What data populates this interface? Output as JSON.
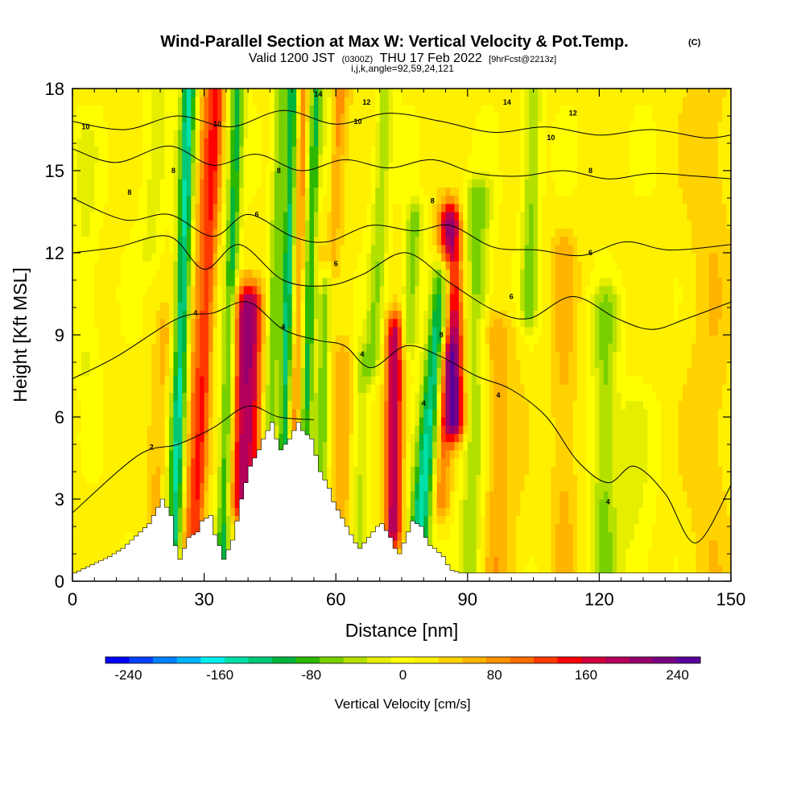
{
  "figure": {
    "title_main": "Wind-Parallel Section at Max W: Vertical Velocity & Pot.Temp.",
    "title_mark": "(C)",
    "subtitle_pre": "Valid 1200 JST",
    "subtitle_utc": "(0300Z)",
    "subtitle_mid": "THU 17 Feb 2022",
    "subtitle_fcst": "[9hrFcst@2213z]",
    "index_line": "i,j,k,angle=92,59,24,121"
  },
  "colors": {
    "background": "#ffffff",
    "terrain": "#ffffff",
    "contour": "#000000",
    "palette": [
      "#0000ff",
      "#0040ff",
      "#0080ff",
      "#00b4ff",
      "#00f0f0",
      "#00e0a8",
      "#00c878",
      "#00b43c",
      "#2cb800",
      "#78d000",
      "#b4e000",
      "#e6ee00",
      "#ffff00",
      "#fff000",
      "#ffd200",
      "#ffb400",
      "#ff9000",
      "#ff6c00",
      "#ff3800",
      "#ff0000",
      "#d2003c",
      "#b4005a",
      "#96006e",
      "#780082",
      "#5a009b"
    ]
  },
  "chart_data": {
    "type": "heatmap",
    "xlabel": "Distance [nm]",
    "ylabel": "Height [Kft MSL]",
    "xlim": [
      0,
      150
    ],
    "ylim": [
      0,
      18
    ],
    "x_ticks": [
      0,
      30,
      60,
      90,
      120,
      150
    ],
    "y_ticks": [
      0,
      3,
      6,
      9,
      12,
      15,
      18
    ],
    "x_tick_labels": [
      "0",
      "30",
      "60",
      "90",
      "120",
      "150"
    ],
    "y_tick_labels": [
      "0",
      "3",
      "6",
      "9",
      "12",
      "15",
      "18"
    ],
    "colorbar": {
      "label": "Vertical Velocity [cm/s]",
      "range": [
        -260,
        260
      ],
      "step": 20,
      "tick_values": [
        -240,
        -160,
        -80,
        0,
        80,
        160,
        240
      ],
      "tick_labels": [
        "-240",
        "-160",
        "-80",
        "0",
        "80",
        "160",
        "240"
      ]
    },
    "terrain": {
      "x_nm": [
        0,
        4,
        8,
        11,
        13,
        15,
        17,
        19,
        20,
        22,
        23,
        24,
        26,
        28,
        29,
        31,
        32,
        33,
        34,
        36,
        37,
        38,
        40,
        42,
        43,
        45,
        46,
        47,
        49,
        51,
        52,
        54,
        55,
        56,
        58,
        59,
        60,
        61,
        62,
        63,
        64,
        65,
        66,
        68,
        69,
        70,
        72,
        73,
        74,
        76,
        77,
        79,
        80,
        81,
        82,
        84,
        85,
        86,
        88,
        90,
        92,
        94,
        96,
        100,
        150
      ],
      "height_kft": [
        0.3,
        0.6,
        0.9,
        1.2,
        1.5,
        1.8,
        2.1,
        2.7,
        3.0,
        2.4,
        1.3,
        0.8,
        1.6,
        1.8,
        2.2,
        2.4,
        1.7,
        1.3,
        0.8,
        1.5,
        2.2,
        3.0,
        4.2,
        4.8,
        5.2,
        5.8,
        5.2,
        4.8,
        5.2,
        5.8,
        5.5,
        5.2,
        4.6,
        4.0,
        3.4,
        2.9,
        2.6,
        2.3,
        2.0,
        1.7,
        1.4,
        1.2,
        1.4,
        1.8,
        2.0,
        2.1,
        1.6,
        1.2,
        1.0,
        1.8,
        2.2,
        2.0,
        1.6,
        1.3,
        1.2,
        0.9,
        0.6,
        0.4,
        0.3,
        0.3,
        0.3,
        0.3,
        0.3,
        0.3,
        0.3
      ]
    },
    "w_bands": [
      {
        "x0_nm": 23,
        "tilt_nm_per_kft": 0.2,
        "width_nm": 1.8,
        "amp_cms": -150,
        "z0_kft": 0.5,
        "z1_kft": 18
      },
      {
        "x0_nm": 26,
        "tilt_nm_per_kft": 0.3,
        "width_nm": 2.2,
        "amp_cms": 80,
        "z0_kft": 0.5,
        "z1_kft": 18
      },
      {
        "x0_nm": 28,
        "tilt_nm_per_kft": 0.3,
        "width_nm": 1.5,
        "amp_cms": 70,
        "z0_kft": 0.5,
        "z1_kft": 18
      },
      {
        "x0_nm": 34,
        "tilt_nm_per_kft": 0.2,
        "width_nm": 1.6,
        "amp_cms": -110,
        "z0_kft": 0.5,
        "z1_kft": 18
      },
      {
        "x0_nm": 38,
        "tilt_nm_per_kft": 0.1,
        "width_nm": 2.5,
        "amp_cms": 150,
        "z0_kft": 3,
        "z1_kft": 10
      },
      {
        "x0_nm": 41,
        "tilt_nm_per_kft": 0.05,
        "width_nm": 2.0,
        "amp_cms": 100,
        "z0_kft": 3,
        "z1_kft": 10
      },
      {
        "x0_nm": 44,
        "tilt_nm_per_kft": 0.2,
        "width_nm": 1.5,
        "amp_cms": -80,
        "z0_kft": 5,
        "z1_kft": 18
      },
      {
        "x0_nm": 47.5,
        "tilt_nm_per_kft": 0.15,
        "width_nm": 1.3,
        "amp_cms": -130,
        "z0_kft": 5,
        "z1_kft": 18
      },
      {
        "x0_nm": 50,
        "tilt_nm_per_kft": 0.15,
        "width_nm": 1.2,
        "amp_cms": 70,
        "z0_kft": 5,
        "z1_kft": 18
      },
      {
        "x0_nm": 52,
        "tilt_nm_per_kft": 0.2,
        "width_nm": 1.5,
        "amp_cms": -110,
        "z0_kft": 5,
        "z1_kft": 18
      },
      {
        "x0_nm": 53,
        "tilt_nm_per_kft": 0.4,
        "width_nm": 2.5,
        "amp_cms": 90,
        "z0_kft": 12,
        "z1_kft": 18
      },
      {
        "x0_nm": 56,
        "tilt_nm_per_kft": 0.15,
        "width_nm": 1.5,
        "amp_cms": -80,
        "z0_kft": 3,
        "z1_kft": 18
      },
      {
        "x0_nm": 61,
        "tilt_nm_per_kft": 0.1,
        "width_nm": 3.0,
        "amp_cms": 50,
        "z0_kft": 1,
        "z1_kft": 8
      },
      {
        "x0_nm": 65,
        "tilt_nm_per_kft": 0.1,
        "width_nm": 2.0,
        "amp_cms": -60,
        "z0_kft": 1,
        "z1_kft": 8
      },
      {
        "x0_nm": 66,
        "tilt_nm_per_kft": 0.3,
        "width_nm": 2.0,
        "amp_cms": -60,
        "z0_kft": 8,
        "z1_kft": 18
      },
      {
        "x0_nm": 73,
        "tilt_nm_per_kft": 0.05,
        "width_nm": 2.0,
        "amp_cms": 170,
        "z0_kft": 2,
        "z1_kft": 9
      },
      {
        "x0_nm": 74,
        "tilt_nm_per_kft": 0.3,
        "width_nm": 2.0,
        "amp_cms": -80,
        "z0_kft": 9,
        "z1_kft": 13
      },
      {
        "x0_nm": 78,
        "tilt_nm_per_kft": 0.6,
        "width_nm": 2.5,
        "amp_cms": -160,
        "z0_kft": 1,
        "z1_kft": 11
      },
      {
        "x0_nm": 83,
        "tilt_nm_per_kft": 0.25,
        "width_nm": 2.0,
        "amp_cms": 80,
        "z0_kft": 3,
        "z1_kft": 8
      },
      {
        "x0_nm": 88,
        "tilt_nm_per_kft": -0.15,
        "width_nm": 2.5,
        "amp_cms": 200,
        "z0_kft": 6,
        "z1_kft": 13
      },
      {
        "x0_nm": 91,
        "tilt_nm_per_kft": 0.1,
        "width_nm": 3.0,
        "amp_cms": -80,
        "z0_kft": 0.5,
        "z1_kft": 14
      },
      {
        "x0_nm": 96,
        "tilt_nm_per_kft": 0.0,
        "width_nm": 5.0,
        "amp_cms": 50,
        "z0_kft": 0.5,
        "z1_kft": 9
      },
      {
        "x0_nm": 103,
        "tilt_nm_per_kft": 0.1,
        "width_nm": 2.0,
        "amp_cms": -70,
        "z0_kft": 10,
        "z1_kft": 18
      },
      {
        "x0_nm": 112,
        "tilt_nm_per_kft": 0.0,
        "width_nm": 3.0,
        "amp_cms": 40,
        "z0_kft": 0.5,
        "z1_kft": 12
      },
      {
        "x0_nm": 121,
        "tilt_nm_per_kft": 0.05,
        "width_nm": 3.0,
        "amp_cms": -70,
        "z0_kft": 0.5,
        "z1_kft": 10
      },
      {
        "x0_nm": 128,
        "tilt_nm_per_kft": 0.0,
        "width_nm": 4.0,
        "amp_cms": -30,
        "z0_kft": 0.5,
        "z1_kft": 6
      },
      {
        "x0_nm": 145,
        "tilt_nm_per_kft": 0.0,
        "width_nm": 5.0,
        "amp_cms": 30,
        "z0_kft": 0.5,
        "z1_kft": 18
      },
      {
        "x0_nm": 3,
        "tilt_nm_per_kft": 0.0,
        "width_nm": 3.0,
        "amp_cms": -30,
        "z0_kft": 8,
        "z1_kft": 16
      },
      {
        "x0_nm": 14,
        "tilt_nm_per_kft": 0.3,
        "width_nm": 3.0,
        "amp_cms": -30,
        "z0_kft": 12,
        "z1_kft": 18
      },
      {
        "x0_nm": 18,
        "tilt_nm_per_kft": 0.3,
        "width_nm": 2.0,
        "amp_cms": 40,
        "z0_kft": 2,
        "z1_kft": 9
      }
    ],
    "theta_contours": [
      {
        "label": "2",
        "x_nm": [
          0,
          15,
          24,
          32,
          40,
          47,
          55
        ],
        "height_kft": [
          2.5,
          4.6,
          5.0,
          5.6,
          6.4,
          6.0,
          5.9
        ]
      },
      {
        "label": "4",
        "x_nm": [
          0,
          10,
          24,
          32,
          40,
          48,
          56,
          62,
          68,
          76,
          84,
          92,
          100,
          108,
          115,
          122,
          128,
          135,
          142,
          150
        ],
        "height_kft": [
          7.4,
          8.2,
          9.6,
          9.8,
          10.2,
          9.2,
          8.8,
          8.6,
          7.8,
          8.6,
          8.2,
          7.5,
          7.0,
          6.0,
          4.4,
          3.6,
          4.2,
          3.2,
          1.4,
          3.5
        ]
      },
      {
        "label": "6",
        "x_nm": [
          0,
          10,
          22,
          30,
          38,
          48,
          58,
          66,
          76,
          86,
          96,
          104,
          114,
          124,
          132,
          140,
          150
        ],
        "height_kft": [
          12.0,
          12.2,
          12.6,
          11.4,
          12.3,
          11.0,
          10.8,
          11.2,
          12.0,
          10.9,
          9.9,
          9.6,
          10.4,
          9.6,
          9.2,
          9.6,
          10.2
        ]
      },
      {
        "label": "8",
        "x_nm": [
          0,
          12,
          22,
          32,
          40,
          50,
          58,
          68,
          78,
          86,
          96,
          106,
          116,
          126,
          136,
          150
        ],
        "height_kft": [
          14.0,
          13.2,
          13.4,
          12.6,
          13.4,
          12.6,
          12.4,
          13.0,
          12.8,
          13.0,
          12.2,
          12.1,
          11.9,
          12.4,
          12.1,
          12.3
        ]
      },
      {
        "label": "10",
        "x_nm": [
          0,
          10,
          22,
          32,
          42,
          52,
          62,
          72,
          82,
          92,
          102,
          112,
          122,
          132,
          142,
          150
        ],
        "height_kft": [
          15.8,
          15.3,
          15.9,
          15.2,
          15.6,
          15.0,
          15.4,
          15.1,
          15.4,
          14.9,
          14.8,
          15.0,
          14.7,
          14.9,
          14.8,
          14.7
        ]
      },
      {
        "label": "12",
        "x_nm": [
          0,
          12,
          24,
          36,
          48,
          60,
          72,
          84,
          96,
          108,
          120,
          132,
          144,
          150
        ],
        "height_kft": [
          16.8,
          16.5,
          17.0,
          16.6,
          17.2,
          16.7,
          17.1,
          16.8,
          16.4,
          16.6,
          16.3,
          16.5,
          16.2,
          16.3
        ]
      }
    ],
    "contour_labels": [
      {
        "text": "10",
        "x_nm": 3,
        "height_kft": 16.6
      },
      {
        "text": "8",
        "x_nm": 13,
        "height_kft": 14.2
      },
      {
        "text": "8",
        "x_nm": 23,
        "height_kft": 15.0
      },
      {
        "text": "10",
        "x_nm": 33,
        "height_kft": 16.7
      },
      {
        "text": "6",
        "x_nm": 42,
        "height_kft": 13.4
      },
      {
        "text": "8",
        "x_nm": 47,
        "height_kft": 15.0
      },
      {
        "text": "14",
        "x_nm": 56,
        "height_kft": 17.8
      },
      {
        "text": "12",
        "x_nm": 67,
        "height_kft": 17.5
      },
      {
        "text": "10",
        "x_nm": 65,
        "height_kft": 16.8
      },
      {
        "text": "8",
        "x_nm": 82,
        "height_kft": 13.9
      },
      {
        "text": "6",
        "x_nm": 60,
        "height_kft": 11.6
      },
      {
        "text": "4",
        "x_nm": 28,
        "height_kft": 9.8
      },
      {
        "text": "4",
        "x_nm": 48,
        "height_kft": 9.3
      },
      {
        "text": "4",
        "x_nm": 66,
        "height_kft": 8.3
      },
      {
        "text": "8",
        "x_nm": 84,
        "height_kft": 9.0
      },
      {
        "text": "4",
        "x_nm": 80,
        "height_kft": 6.5
      },
      {
        "text": "2",
        "x_nm": 18,
        "height_kft": 4.9
      },
      {
        "text": "4",
        "x_nm": 97,
        "height_kft": 6.8
      },
      {
        "text": "6",
        "x_nm": 100,
        "height_kft": 10.4
      },
      {
        "text": "6",
        "x_nm": 118,
        "height_kft": 12.0
      },
      {
        "text": "8",
        "x_nm": 118,
        "height_kft": 15.0
      },
      {
        "text": "10",
        "x_nm": 109,
        "height_kft": 16.2
      },
      {
        "text": "14",
        "x_nm": 99,
        "height_kft": 17.5
      },
      {
        "text": "12",
        "x_nm": 114,
        "height_kft": 17.1
      },
      {
        "text": "4",
        "x_nm": 122,
        "height_kft": 2.9
      }
    ]
  }
}
